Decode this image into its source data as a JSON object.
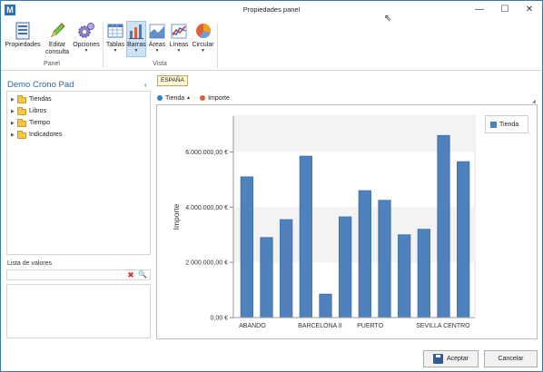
{
  "window": {
    "title": "Propiedades panel",
    "app_icon": "M",
    "minimize_glyph": "—",
    "maximize_glyph": "☐",
    "close_glyph": "✕"
  },
  "ribbon": {
    "buttons": [
      {
        "label": "Propiedades",
        "icon": "properties-icon"
      },
      {
        "label": "Editar",
        "label2": "consulta",
        "icon": "edit-pencil-icon"
      },
      {
        "label": "Opciones",
        "icon": "gears-icon",
        "dropdown": "▼"
      },
      {
        "label": "Tablas",
        "icon": "table-icon",
        "dropdown": "▼"
      },
      {
        "label": "Barras",
        "icon": "bar-chart-icon",
        "dropdown": "▼",
        "selected": true
      },
      {
        "label": "Áreas",
        "icon": "area-chart-icon",
        "dropdown": "▼"
      },
      {
        "label": "Líneas",
        "icon": "line-chart-icon",
        "dropdown": "▼"
      },
      {
        "label": "Circular",
        "icon": "pie-chart-icon",
        "dropdown": "▼"
      }
    ],
    "groups": [
      {
        "label": "Panel"
      },
      {
        "label": "Vista"
      }
    ]
  },
  "left_pane": {
    "title": "Demo Crono Pad",
    "collapse_glyph": "‹",
    "tree": [
      {
        "label": "Tiendas"
      },
      {
        "label": "Libros"
      },
      {
        "label": "Tiempo"
      },
      {
        "label": "Indicadores"
      }
    ],
    "expand_glyph": "▶",
    "value_list_label": "Lista de valores",
    "clear_glyph": "✖",
    "search_glyph": "🔍"
  },
  "filter_tag": "ESPAÑA",
  "series_bar": {
    "items": [
      {
        "label": "Tienda",
        "color": "#2f7fcc",
        "sort": "▲"
      },
      {
        "label": "Importe",
        "color": "#e0603b"
      }
    ],
    "grip": "◢"
  },
  "chart_data": {
    "type": "bar",
    "ylabel": "Importe",
    "y_tick_labels": [
      "0,00 €",
      "2.000.000,00 €",
      "4.000.000,00 €",
      "6.000.000,00 €"
    ],
    "y_ticks": [
      0,
      2000000,
      4000000,
      6000000
    ],
    "ylim": [
      0,
      7300000
    ],
    "x_tick_labels": [
      "ABANDO",
      "BARCELONA II",
      "PUERTO",
      "SEVILLA CENTRO"
    ],
    "x_tick_positions": [
      0,
      3,
      6,
      9
    ],
    "series": [
      {
        "name": "Tienda",
        "color": "#4f81bd",
        "values": [
          5100000,
          2900000,
          3550000,
          5850000,
          850000,
          3650000,
          4600000,
          4250000,
          3000000,
          3200000,
          6600000,
          5650000
        ]
      }
    ],
    "legend_position": "top-right",
    "banded_background": true
  },
  "footer": {
    "ok_label": "Aceptar",
    "cancel_label": "Cancelar"
  }
}
